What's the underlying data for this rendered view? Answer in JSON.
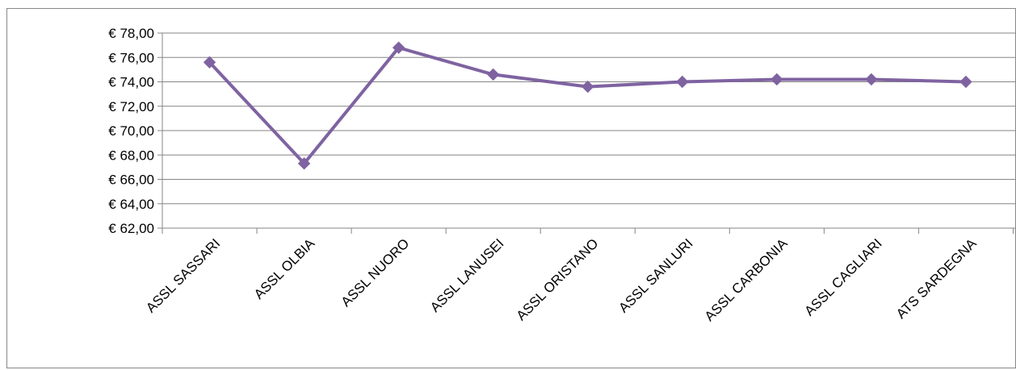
{
  "chart_data": {
    "type": "line",
    "title": "",
    "xlabel": "",
    "ylabel": "",
    "categories": [
      "ASSL SASSARI",
      "ASSL OLBIA",
      "ASSL NUORO",
      "ASSL LANUSEI",
      "ASSL ORISTANO",
      "ASSL SANLURI",
      "ASSL CARBONIA",
      "ASSL CAGLIARI",
      "ATS SARDEGNA"
    ],
    "series": [
      {
        "values": [
          75.6,
          67.3,
          76.8,
          74.6,
          73.6,
          74.0,
          74.2,
          74.2,
          74.0
        ]
      }
    ],
    "ylim": [
      62,
      78
    ],
    "ytick_values": [
      62,
      64,
      66,
      68,
      70,
      72,
      74,
      76,
      78
    ],
    "ytick_labels": [
      "€ 62,00",
      "€ 64,00",
      "€ 66,00",
      "€ 68,00",
      "€ 70,00",
      "€ 72,00",
      "€ 74,00",
      "€ 76,00",
      "€ 78,00"
    ],
    "grid": true,
    "legend": "none",
    "line_color": "#7f63a1",
    "grid_color": "#868686",
    "marker": "diamond"
  }
}
